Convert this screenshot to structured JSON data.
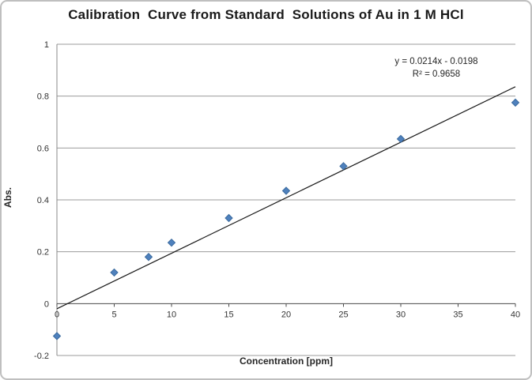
{
  "chart_data": {
    "type": "scatter",
    "title": "Calibration  Curve from Standard  Solutions of Au in 1 M HCl",
    "xlabel": "Concentration [ppm]",
    "ylabel": "Abs.",
    "x": [
      0,
      5,
      8,
      10,
      15,
      20,
      25,
      30,
      40
    ],
    "y": [
      -0.125,
      0.12,
      0.18,
      0.235,
      0.33,
      0.435,
      0.53,
      0.635,
      0.775
    ],
    "trendline": {
      "slope": 0.0214,
      "intercept": -0.0198,
      "equation": "y = 0.0214x - 0.0198",
      "r_squared": "R² = 0.9658"
    },
    "xlim": [
      0,
      40
    ],
    "ylim": [
      -0.2,
      1
    ],
    "xticks": [
      0,
      5,
      10,
      15,
      20,
      25,
      30,
      35,
      40
    ],
    "yticks": [
      -0.2,
      0,
      0.2,
      0.4,
      0.6,
      0.8,
      1
    ],
    "grid": "horizontal",
    "legend": "none",
    "colors": {
      "marker": "#4F81BD",
      "marker_border": "#3A6A9E",
      "trendline": "#1a1a1a",
      "gridline": "#9b9b9b",
      "axis_line": "#8a8a8a",
      "zero_line": "#4a4a4a",
      "tick_text": "#333333"
    }
  }
}
